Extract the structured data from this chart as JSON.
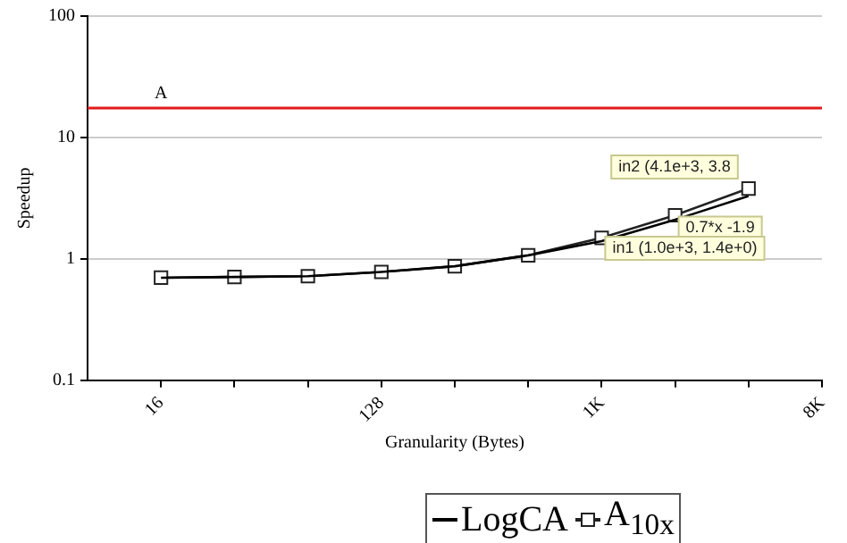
{
  "chart_data": {
    "type": "line",
    "xlabel": "Granularity (Bytes)",
    "ylabel": "Speedup",
    "x": [
      16,
      32,
      64,
      128,
      256,
      512,
      1024,
      2048,
      4096
    ],
    "series": [
      {
        "name": "LogCA",
        "color": "#000000",
        "marker": "none",
        "values": [
          0.7,
          0.71,
          0.72,
          0.78,
          0.87,
          1.07,
          1.4,
          2.1,
          3.3
        ]
      },
      {
        "name": "A$_{10x}$",
        "color": "#222222",
        "marker": "square",
        "values": [
          0.7,
          0.71,
          0.72,
          0.78,
          0.87,
          1.07,
          1.49,
          2.29,
          3.8
        ]
      }
    ],
    "log": "xy",
    "xlim": [
      8,
      8192
    ],
    "ylim": [
      0.1,
      100
    ],
    "xticks": [
      16,
      {
        "value": 32,
        "label": null
      },
      {
        "value": 64,
        "label": null
      },
      128,
      {
        "value": 256,
        "label": null
      },
      {
        "value": 512,
        "label": null
      },
      {
        "value": 1024,
        "label": "1K"
      },
      {
        "value": 2048,
        "label": null
      },
      {
        "value": 4096,
        "label": null
      },
      {
        "value": 8192,
        "label": "8K"
      }
    ],
    "yticks": [
      0.1,
      1,
      10,
      100
    ],
    "grid": "y",
    "legend": "bottom",
    "ref_lines": [
      {
        "axis": "y",
        "value": 17.5,
        "label": "A",
        "color": "#e01b1b"
      }
    ],
    "annotations": [
      {
        "text": "in2 (4.1e+3, 3.8",
        "x": 4096,
        "y": 3.8
      },
      {
        "text": "0.7*x -1.9",
        "x": 2048,
        "y": 2.05
      },
      {
        "text": "in1 (1.0e+3, 1.4e+0)",
        "x": 1024,
        "y": 1.4
      }
    ]
  }
}
